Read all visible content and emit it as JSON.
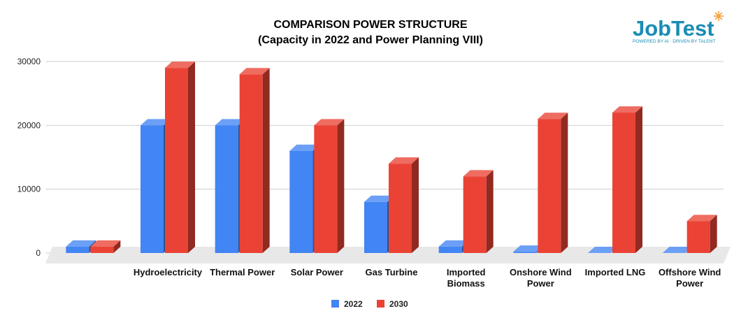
{
  "chart_data": {
    "type": "bar",
    "title": "COMPARISON POWER STRUCTURE",
    "subtitle": "(Capacity in 2022 and Power Planning VIII)",
    "categories": [
      "",
      "Hydroelectricity",
      "Thermal Power",
      "Solar Power",
      "Gas Turbine",
      "Imported Biomass",
      "Onshore Wind Power",
      "Imported LNG",
      "Offshore Wind Power"
    ],
    "category_lines": [
      [
        ""
      ],
      [
        "Hydroelectricity"
      ],
      [
        "Thermal Power"
      ],
      [
        "Solar Power"
      ],
      [
        "Gas Turbine"
      ],
      [
        "Imported",
        "Biomass"
      ],
      [
        "Onshore Wind",
        "Power"
      ],
      [
        "Imported LNG"
      ],
      [
        "Offshore Wind",
        "Power"
      ]
    ],
    "series": [
      {
        "name": "2022",
        "color": "#4285f4",
        "values": [
          1000,
          20000,
          20000,
          16000,
          8000,
          1000,
          200,
          0,
          0
        ]
      },
      {
        "name": "2030",
        "color": "#ea4335",
        "values": [
          1000,
          29000,
          28000,
          20000,
          14000,
          12000,
          21000,
          22000,
          5000
        ]
      }
    ],
    "ylim": [
      0,
      30000
    ],
    "yticks": [
      "0",
      "10000",
      "20000",
      "30000"
    ],
    "ytick_values": [
      0,
      10000,
      20000,
      30000
    ],
    "xlabel": "",
    "ylabel": "",
    "grid": true,
    "legend_position": "bottom-center",
    "style": "3d-bars"
  },
  "logo": {
    "text_job": "Job",
    "text_test": "Test",
    "tagline": "POWERED BY AI · DRIVEN BY TALENT",
    "color": "#1a8cb5",
    "accent_color": "#f0a03c",
    "icon": "starburst-icon"
  }
}
